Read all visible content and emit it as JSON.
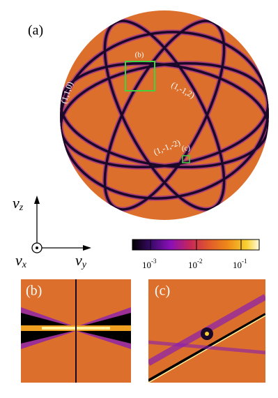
{
  "figure": {
    "panel_a": {
      "label": "(a)",
      "inset_b_label": "(b)",
      "inset_c_label": "(c)",
      "plane_labels": [
        "(1,1,0)",
        "(1,-1,2)",
        "(1,-1,-2)"
      ]
    },
    "axes": {
      "vz": {
        "symbol": "v",
        "subscript": "z"
      },
      "vx": {
        "symbol": "v",
        "subscript": "x"
      },
      "vy": {
        "symbol": "v",
        "subscript": "y"
      }
    },
    "colorbar": {
      "ticks": [
        {
          "base": "10",
          "exponent": "-3"
        },
        {
          "base": "10",
          "exponent": "-2"
        },
        {
          "base": "10",
          "exponent": "-1"
        }
      ]
    },
    "panel_b": {
      "label": "(b)"
    },
    "panel_c": {
      "label": "(c)"
    }
  }
}
